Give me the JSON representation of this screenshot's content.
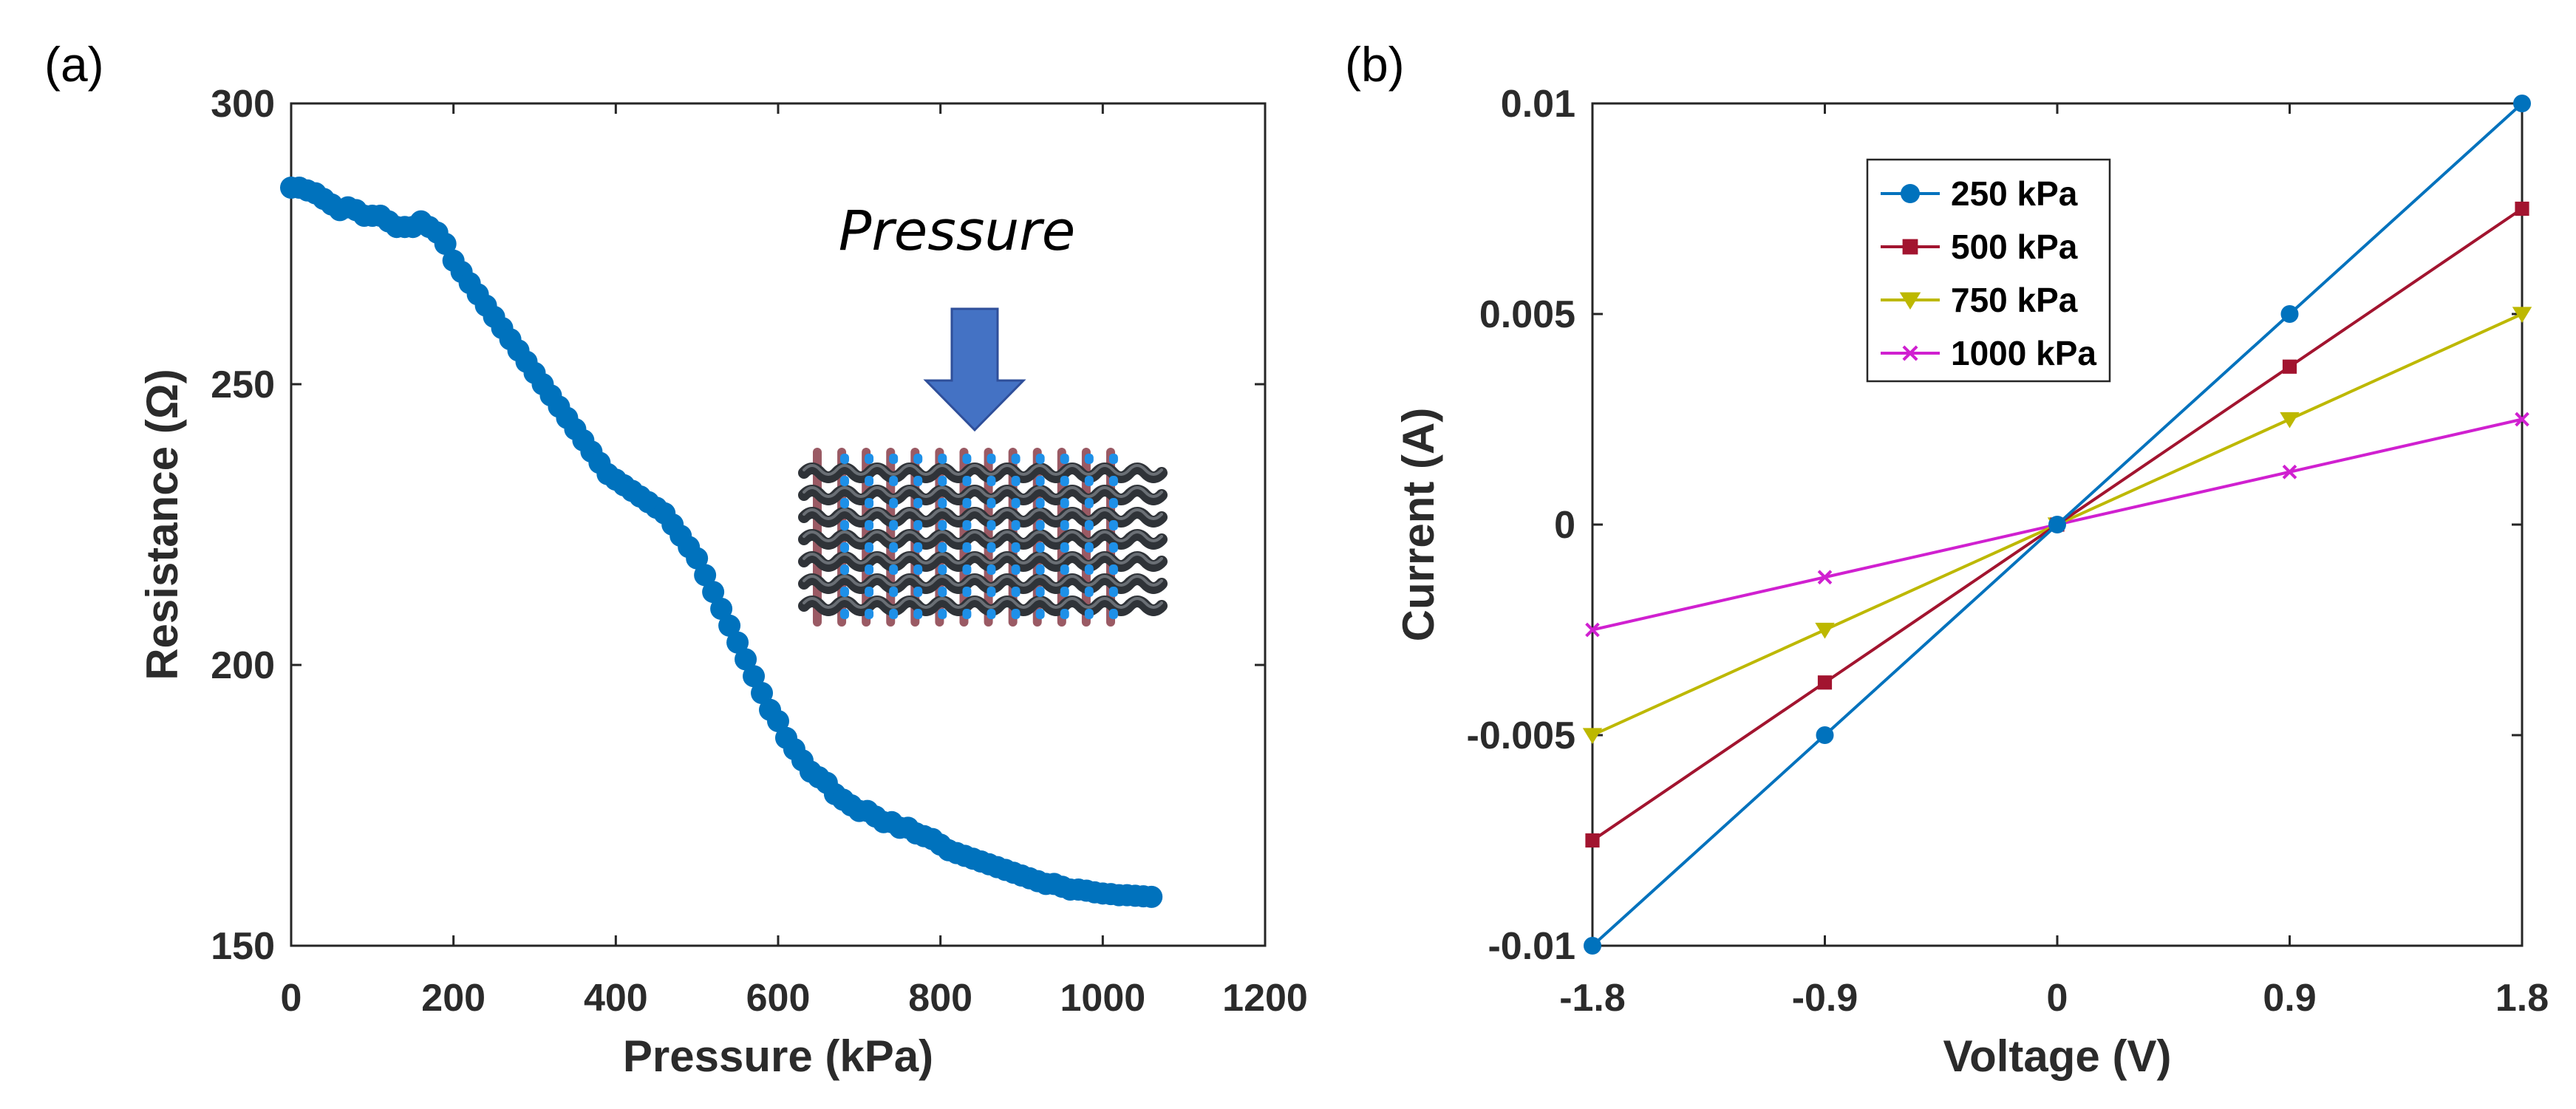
{
  "chart_data": [
    {
      "panel_label": "(a)",
      "type": "scatter",
      "title": "",
      "xlabel": "Pressure (kPa)",
      "ylabel": "Resistance (Ω)",
      "xlim": [
        0,
        1200
      ],
      "ylim": [
        150,
        300
      ],
      "xticks": [
        0,
        200,
        400,
        600,
        800,
        1000,
        1200
      ],
      "yticks": [
        150,
        200,
        250,
        300
      ],
      "grid": false,
      "series": [
        {
          "name": "Resistance",
          "color": "#0072BD",
          "x": [
            0,
            10,
            20,
            30,
            40,
            50,
            60,
            70,
            80,
            90,
            100,
            110,
            120,
            130,
            140,
            150,
            160,
            170,
            180,
            190,
            200,
            210,
            220,
            230,
            240,
            250,
            260,
            270,
            280,
            290,
            300,
            310,
            320,
            330,
            340,
            350,
            360,
            370,
            380,
            390,
            400,
            410,
            420,
            430,
            440,
            450,
            460,
            470,
            480,
            490,
            500,
            510,
            520,
            530,
            540,
            550,
            560,
            570,
            580,
            590,
            600,
            610,
            620,
            630,
            640,
            650,
            660,
            670,
            680,
            690,
            700,
            710,
            720,
            730,
            740,
            750,
            760,
            770,
            780,
            790,
            800,
            810,
            820,
            830,
            840,
            850,
            860,
            870,
            880,
            890,
            900,
            910,
            920,
            930,
            940,
            950,
            960,
            970,
            980,
            990,
            1000,
            1010,
            1020,
            1030,
            1040,
            1050,
            1060
          ],
          "y": [
            285,
            285,
            284.5,
            284,
            283,
            282,
            281,
            281.5,
            281,
            280,
            280,
            280,
            279,
            278,
            278,
            278,
            279,
            278,
            277,
            275,
            272,
            270,
            268,
            266,
            264,
            262,
            260,
            258,
            256,
            254,
            252,
            250,
            248,
            246,
            244,
            242,
            240,
            238,
            236,
            234,
            233,
            232,
            231,
            230,
            229,
            228,
            227,
            225,
            223,
            221,
            219,
            216,
            213,
            210,
            207,
            204,
            201,
            198,
            195,
            192,
            190,
            187,
            185,
            183,
            181,
            180,
            179,
            177,
            176,
            175,
            174,
            174,
            173,
            172,
            172,
            171,
            171,
            170,
            169.5,
            169,
            168,
            167,
            166.5,
            166,
            165.5,
            165,
            164.5,
            164,
            163.5,
            163,
            162.5,
            162,
            161.5,
            161,
            161,
            160.5,
            160,
            160,
            159.8,
            159.5,
            159.3,
            159.2,
            159,
            159,
            158.9,
            158.8,
            158.7
          ]
        }
      ],
      "inset": {
        "label": "Pressure",
        "arrow_color": "#4472C4"
      }
    },
    {
      "panel_label": "(b)",
      "type": "line",
      "title": "",
      "xlabel": "Voltage (V)",
      "ylabel": "Current (A)",
      "xlim": [
        -1.8,
        1.8
      ],
      "ylim": [
        -0.01,
        0.01
      ],
      "xticks": [
        -1.8,
        -0.9,
        0,
        0.9,
        1.8
      ],
      "xtick_labels": [
        "-1.8",
        "-0.9",
        "0",
        "0.9",
        "1.8"
      ],
      "yticks": [
        -0.01,
        -0.005,
        0,
        0.005,
        0.01
      ],
      "ytick_labels": [
        "-0.01",
        "-0.005",
        "0",
        "0.005",
        "0.01"
      ],
      "grid": false,
      "legend_position": "top-left",
      "x": [
        -1.8,
        -0.9,
        0,
        0.9,
        1.8
      ],
      "series": [
        {
          "name": "250 kPa",
          "color": "#0072BD",
          "marker": "circle",
          "values": [
            -0.01,
            -0.005,
            0,
            0.005,
            0.01
          ]
        },
        {
          "name": "500 kPa",
          "color": "#A2142F",
          "marker": "square",
          "values": [
            -0.0075,
            -0.00375,
            0,
            0.00375,
            0.0075
          ]
        },
        {
          "name": "750 kPa",
          "color": "#BDB800",
          "marker": "triangle-down",
          "values": [
            -0.005,
            -0.0025,
            0,
            0.0025,
            0.005
          ]
        },
        {
          "name": "1000 kPa",
          "color": "#D020D0",
          "marker": "x",
          "values": [
            -0.0025,
            -0.00125,
            0,
            0.00125,
            0.0025
          ]
        }
      ]
    }
  ]
}
